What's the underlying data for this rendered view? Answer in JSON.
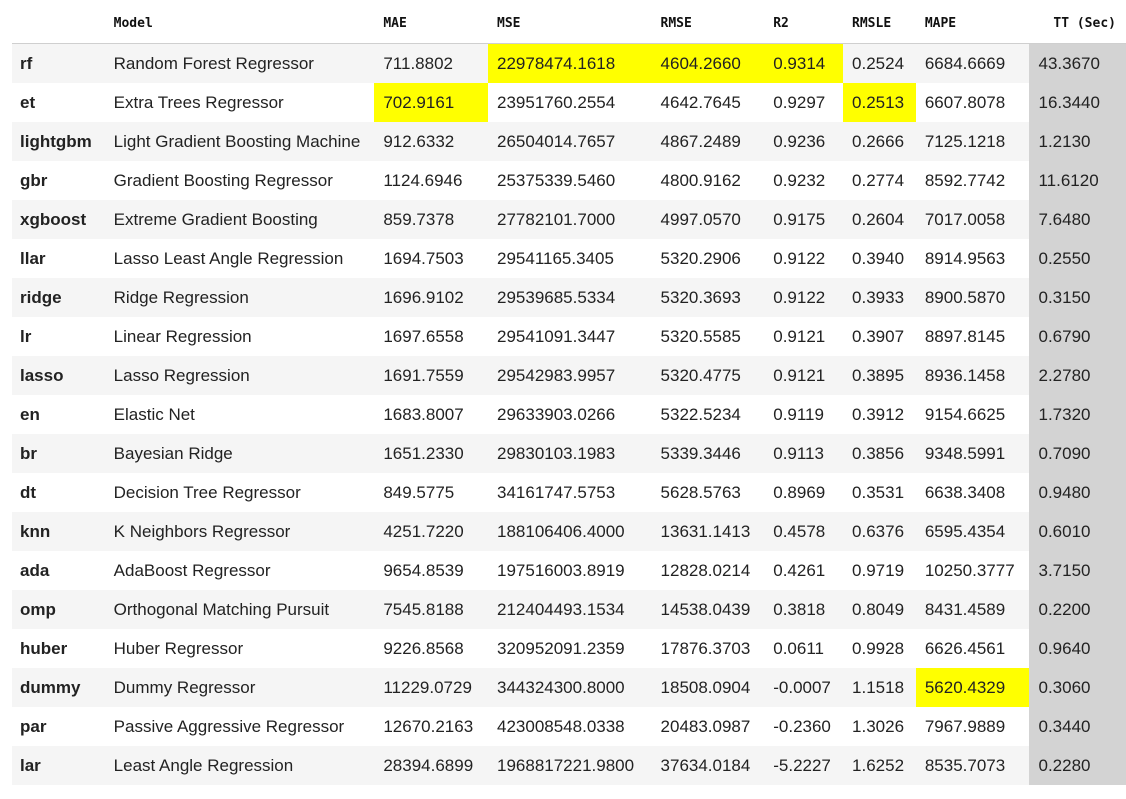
{
  "table": {
    "headers": [
      "",
      "Model",
      "MAE",
      "MSE",
      "RMSE",
      "R2",
      "RMSLE",
      "MAPE",
      "TT (Sec)"
    ],
    "highlight_color": "#ffff00",
    "tt_column_color": "#d3d3d3",
    "rows": [
      {
        "id": "rf",
        "model": "Random Forest Regressor",
        "mae": "711.8802",
        "mse": "22978474.1618",
        "rmse": "4604.2660",
        "r2": "0.9314",
        "rmsle": "0.2524",
        "mape": "6684.6669",
        "tt": "43.3670",
        "highlight": [
          "mse",
          "rmse",
          "r2"
        ]
      },
      {
        "id": "et",
        "model": "Extra Trees Regressor",
        "mae": "702.9161",
        "mse": "23951760.2554",
        "rmse": "4642.7645",
        "r2": "0.9297",
        "rmsle": "0.2513",
        "mape": "6607.8078",
        "tt": "16.3440",
        "highlight": [
          "mae",
          "rmsle"
        ]
      },
      {
        "id": "lightgbm",
        "model": "Light Gradient Boosting Machine",
        "mae": "912.6332",
        "mse": "26504014.7657",
        "rmse": "4867.2489",
        "r2": "0.9236",
        "rmsle": "0.2666",
        "mape": "7125.1218",
        "tt": "1.2130",
        "highlight": []
      },
      {
        "id": "gbr",
        "model": "Gradient Boosting Regressor",
        "mae": "1124.6946",
        "mse": "25375339.5460",
        "rmse": "4800.9162",
        "r2": "0.9232",
        "rmsle": "0.2774",
        "mape": "8592.7742",
        "tt": "11.6120",
        "highlight": []
      },
      {
        "id": "xgboost",
        "model": "Extreme Gradient Boosting",
        "mae": "859.7378",
        "mse": "27782101.7000",
        "rmse": "4997.0570",
        "r2": "0.9175",
        "rmsle": "0.2604",
        "mape": "7017.0058",
        "tt": "7.6480",
        "highlight": []
      },
      {
        "id": "llar",
        "model": "Lasso Least Angle Regression",
        "mae": "1694.7503",
        "mse": "29541165.3405",
        "rmse": "5320.2906",
        "r2": "0.9122",
        "rmsle": "0.3940",
        "mape": "8914.9563",
        "tt": "0.2550",
        "highlight": []
      },
      {
        "id": "ridge",
        "model": "Ridge Regression",
        "mae": "1696.9102",
        "mse": "29539685.5334",
        "rmse": "5320.3693",
        "r2": "0.9122",
        "rmsle": "0.3933",
        "mape": "8900.5870",
        "tt": "0.3150",
        "highlight": []
      },
      {
        "id": "lr",
        "model": "Linear Regression",
        "mae": "1697.6558",
        "mse": "29541091.3447",
        "rmse": "5320.5585",
        "r2": "0.9121",
        "rmsle": "0.3907",
        "mape": "8897.8145",
        "tt": "0.6790",
        "highlight": []
      },
      {
        "id": "lasso",
        "model": "Lasso Regression",
        "mae": "1691.7559",
        "mse": "29542983.9957",
        "rmse": "5320.4775",
        "r2": "0.9121",
        "rmsle": "0.3895",
        "mape": "8936.1458",
        "tt": "2.2780",
        "highlight": []
      },
      {
        "id": "en",
        "model": "Elastic Net",
        "mae": "1683.8007",
        "mse": "29633903.0266",
        "rmse": "5322.5234",
        "r2": "0.9119",
        "rmsle": "0.3912",
        "mape": "9154.6625",
        "tt": "1.7320",
        "highlight": []
      },
      {
        "id": "br",
        "model": "Bayesian Ridge",
        "mae": "1651.2330",
        "mse": "29830103.1983",
        "rmse": "5339.3446",
        "r2": "0.9113",
        "rmsle": "0.3856",
        "mape": "9348.5991",
        "tt": "0.7090",
        "highlight": []
      },
      {
        "id": "dt",
        "model": "Decision Tree Regressor",
        "mae": "849.5775",
        "mse": "34161747.5753",
        "rmse": "5628.5763",
        "r2": "0.8969",
        "rmsle": "0.3531",
        "mape": "6638.3408",
        "tt": "0.9480",
        "highlight": []
      },
      {
        "id": "knn",
        "model": "K Neighbors Regressor",
        "mae": "4251.7220",
        "mse": "188106406.4000",
        "rmse": "13631.1413",
        "r2": "0.4578",
        "rmsle": "0.6376",
        "mape": "6595.4354",
        "tt": "0.6010",
        "highlight": []
      },
      {
        "id": "ada",
        "model": "AdaBoost Regressor",
        "mae": "9654.8539",
        "mse": "197516003.8919",
        "rmse": "12828.0214",
        "r2": "0.4261",
        "rmsle": "0.9719",
        "mape": "10250.3777",
        "tt": "3.7150",
        "highlight": []
      },
      {
        "id": "omp",
        "model": "Orthogonal Matching Pursuit",
        "mae": "7545.8188",
        "mse": "212404493.1534",
        "rmse": "14538.0439",
        "r2": "0.3818",
        "rmsle": "0.8049",
        "mape": "8431.4589",
        "tt": "0.2200",
        "highlight": []
      },
      {
        "id": "huber",
        "model": "Huber Regressor",
        "mae": "9226.8568",
        "mse": "320952091.2359",
        "rmse": "17876.3703",
        "r2": "0.0611",
        "rmsle": "0.9928",
        "mape": "6626.4561",
        "tt": "0.9640",
        "highlight": []
      },
      {
        "id": "dummy",
        "model": "Dummy Regressor",
        "mae": "11229.0729",
        "mse": "344324300.8000",
        "rmse": "18508.0904",
        "r2": "-0.0007",
        "rmsle": "1.1518",
        "mape": "5620.4329",
        "tt": "0.3060",
        "highlight": [
          "mape"
        ]
      },
      {
        "id": "par",
        "model": "Passive Aggressive Regressor",
        "mae": "12670.2163",
        "mse": "423008548.0338",
        "rmse": "20483.0987",
        "r2": "-0.2360",
        "rmsle": "1.3026",
        "mape": "7967.9889",
        "tt": "0.3440",
        "highlight": []
      },
      {
        "id": "lar",
        "model": "Least Angle Regression",
        "mae": "28394.6899",
        "mse": "1968817221.9800",
        "rmse": "37634.0184",
        "r2": "-5.2227",
        "rmsle": "1.6252",
        "mape": "8535.7073",
        "tt": "0.2280",
        "highlight": []
      }
    ]
  }
}
